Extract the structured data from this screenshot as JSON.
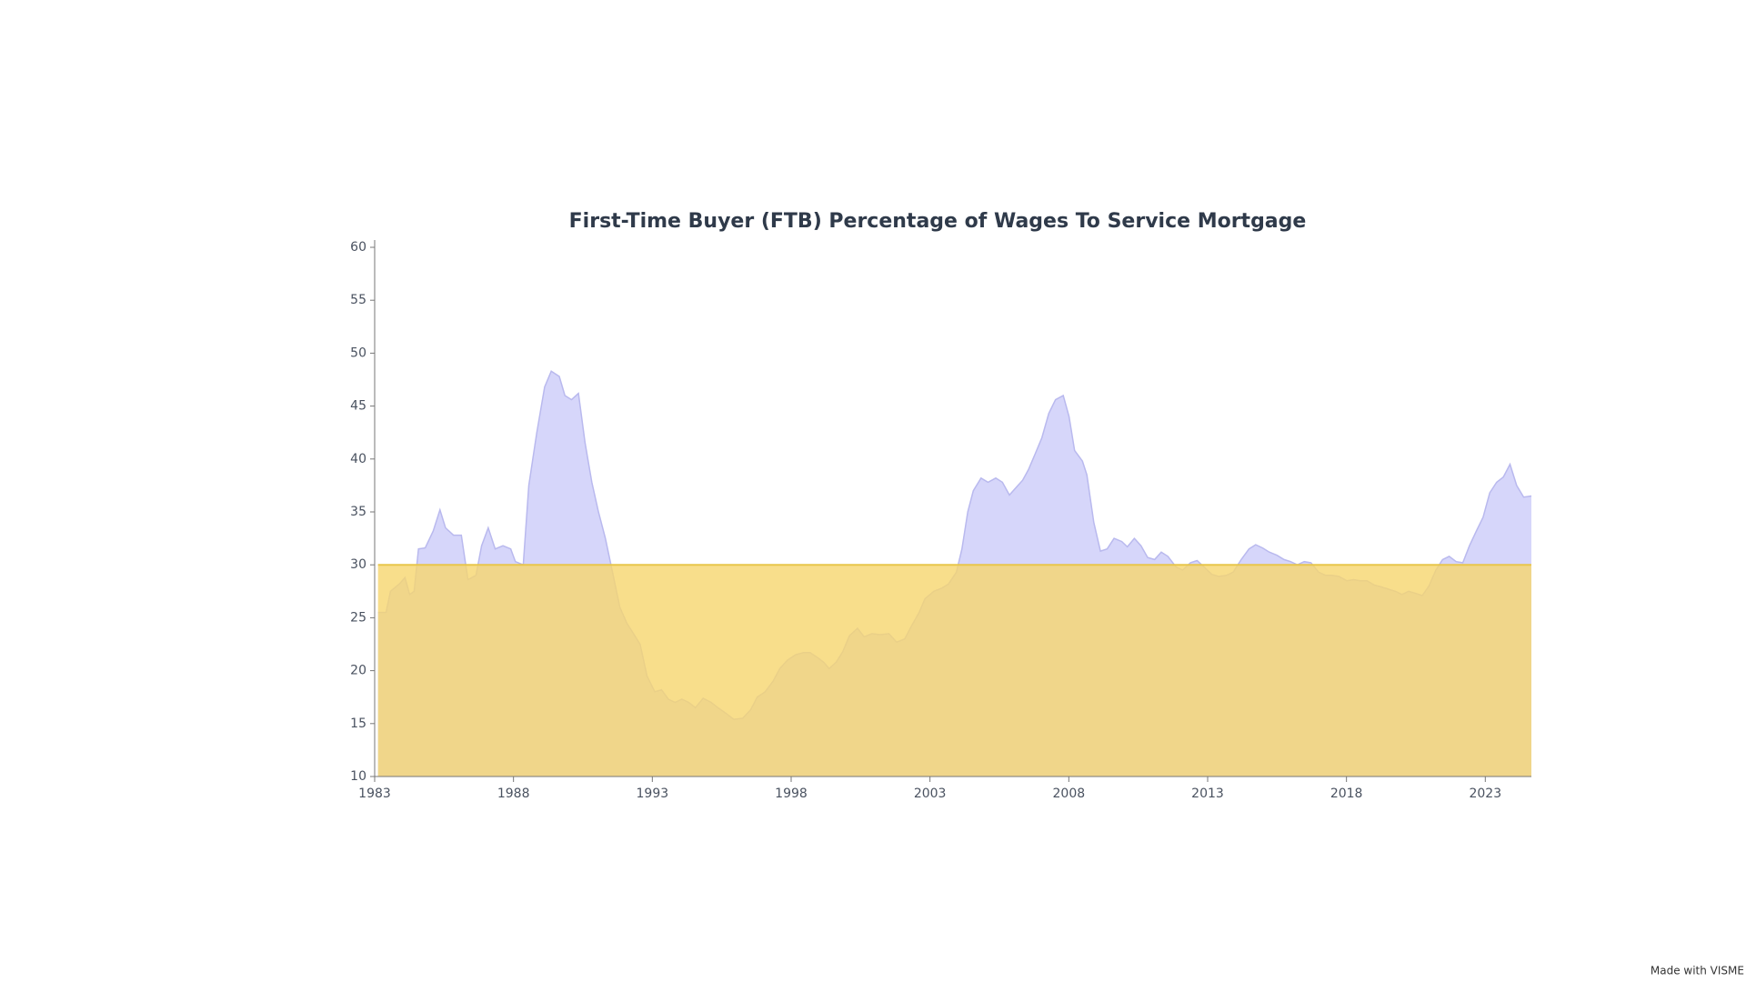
{
  "chart_data": {
    "type": "area",
    "title": "First-Time Buyer (FTB) Percentage of Wages To Service Mortgage",
    "watermark": "Made with VISME",
    "series": [
      {
        "color": "#d6d6fa",
        "line_color": "#b9b9ee",
        "x": [
          1983.12,
          1983.41,
          1983.57,
          1983.89,
          1984.09,
          1984.26,
          1984.42,
          1984.58,
          1984.82,
          1985.11,
          1985.35,
          1985.55,
          1985.84,
          1986.12,
          1986.36,
          1986.65,
          1986.85,
          1987.09,
          1987.34,
          1987.62,
          1987.9,
          1988.07,
          1988.35,
          1988.55,
          1988.84,
          1989.12,
          1989.36,
          1989.65,
          1989.85,
          1990.09,
          1990.34,
          1990.58,
          1990.82,
          1991.06,
          1991.31,
          1991.59,
          1991.83,
          1992.08,
          1992.32,
          1992.56,
          1992.81,
          1993.09,
          1993.33,
          1993.58,
          1993.82,
          1994.06,
          1994.31,
          1994.55,
          1994.83,
          1995.12,
          1995.36,
          1995.64,
          1995.93,
          1996.25,
          1996.54,
          1996.78,
          1997.06,
          1997.35,
          1997.59,
          1997.87,
          1998.16,
          1998.44,
          1998.68,
          1998.97,
          1999.17,
          1999.37,
          1999.62,
          1999.86,
          2000.1,
          2000.39,
          2000.63,
          2000.91,
          2001.2,
          2001.52,
          2001.8,
          2002.09,
          2002.33,
          2002.61,
          2002.82,
          2003.14,
          2003.43,
          2003.67,
          2003.95,
          2004.15,
          2004.36,
          2004.56,
          2004.84,
          2005.09,
          2005.37,
          2005.61,
          2005.86,
          2006.1,
          2006.34,
          2006.55,
          2006.79,
          2007.03,
          2007.28,
          2007.52,
          2007.8,
          2008.01,
          2008.21,
          2008.49,
          2008.65,
          2008.9,
          2009.14,
          2009.38,
          2009.63,
          2009.91,
          2010.11,
          2010.36,
          2010.6,
          2010.84,
          2011.09,
          2011.33,
          2011.57,
          2011.86,
          2012.1,
          2012.38,
          2012.62,
          2012.87,
          2013.15,
          2013.4,
          2013.68,
          2013.92,
          2014.21,
          2014.49,
          2014.73,
          2014.98,
          2015.22,
          2015.5,
          2015.75,
          2015.99,
          2016.23,
          2016.48,
          2016.72,
          2017.0,
          2017.25,
          2017.49,
          2017.73,
          2018.01,
          2018.26,
          2018.5,
          2018.74,
          2018.99,
          2019.27,
          2019.51,
          2019.76,
          2020.0,
          2020.24,
          2020.49,
          2020.73,
          2020.97,
          2021.22,
          2021.46,
          2021.7,
          2021.95,
          2022.19,
          2022.43,
          2022.68,
          2022.92,
          2023.16,
          2023.41,
          2023.65,
          2023.89,
          2024.13,
          2024.38,
          2024.66
        ],
        "values": [
          25.5,
          25.5,
          27.5,
          28.2,
          28.8,
          27.2,
          27.5,
          31.5,
          31.6,
          33.2,
          35.2,
          33.5,
          32.8,
          32.8,
          28.6,
          29.0,
          31.8,
          33.5,
          31.5,
          31.8,
          31.5,
          30.3,
          30.0,
          37.5,
          42.5,
          46.8,
          48.3,
          47.8,
          46.0,
          45.6,
          46.2,
          41.5,
          37.8,
          35.0,
          32.5,
          29.0,
          26.0,
          24.5,
          23.5,
          22.5,
          19.5,
          18.0,
          18.2,
          17.3,
          17.0,
          17.3,
          17.0,
          16.5,
          17.4,
          17.0,
          16.5,
          16.0,
          15.4,
          15.5,
          16.3,
          17.5,
          18.0,
          19.0,
          20.2,
          21.0,
          21.5,
          21.7,
          21.7,
          21.2,
          20.8,
          20.2,
          20.8,
          21.8,
          23.3,
          24.0,
          23.2,
          23.5,
          23.4,
          23.5,
          22.7,
          23.0,
          24.2,
          25.5,
          26.8,
          27.5,
          27.8,
          28.2,
          29.3,
          31.5,
          35.0,
          37.0,
          38.2,
          37.8,
          38.2,
          37.8,
          36.6,
          37.3,
          38.0,
          39.0,
          40.5,
          42.0,
          44.3,
          45.6,
          46.0,
          44.0,
          40.8,
          39.8,
          38.5,
          34.0,
          31.3,
          31.5,
          32.5,
          32.2,
          31.7,
          32.5,
          31.8,
          30.7,
          30.5,
          31.2,
          30.8,
          29.8,
          29.5,
          30.2,
          30.4,
          29.8,
          29.1,
          28.9,
          29.0,
          29.3,
          30.5,
          31.5,
          31.9,
          31.6,
          31.2,
          30.9,
          30.5,
          30.3,
          30.0,
          30.3,
          30.2,
          29.3,
          29.0,
          29.0,
          28.9,
          28.5,
          28.6,
          28.5,
          28.5,
          28.1,
          27.9,
          27.7,
          27.5,
          27.2,
          27.5,
          27.3,
          27.1,
          28.0,
          29.5,
          30.5,
          30.8,
          30.3,
          30.2,
          31.8,
          33.2,
          34.5,
          36.8,
          37.8,
          38.3,
          39.5,
          37.5,
          36.4,
          36.5
        ]
      }
    ],
    "reference": {
      "value": 30,
      "color": "#f6d66e",
      "line_color": "#e8c64a"
    },
    "xlim": [
      1983,
      2024.66
    ],
    "xticks": [
      1983,
      1988,
      1993,
      1998,
      2003,
      2008,
      2013,
      2018,
      2023
    ],
    "ylim": [
      10,
      60
    ],
    "yticks": [
      10,
      15,
      20,
      25,
      30,
      35,
      40,
      45,
      50,
      55,
      60
    ]
  }
}
